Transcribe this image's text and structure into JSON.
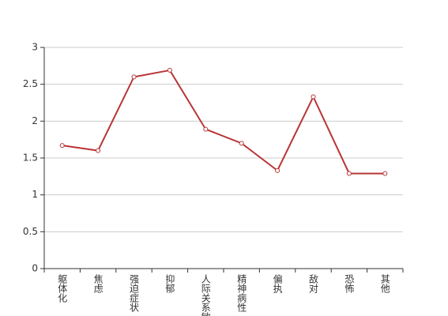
{
  "chart_data": {
    "type": "line",
    "categories": [
      "躯体化",
      "焦虑",
      "强迫症状",
      "抑郁",
      "人际关系敏感",
      "精神病性",
      "偏执",
      "敌对",
      "恐怖",
      "其他"
    ],
    "series": [
      {
        "color": "#b83535",
        "values": [
          1.67,
          1.6,
          2.6,
          2.69,
          1.89,
          1.7,
          1.33,
          2.33,
          1.29,
          1.29
        ]
      }
    ],
    "ylim": [
      0,
      3
    ],
    "yticks": [
      0,
      0.5,
      1,
      1.5,
      2,
      2.5,
      3
    ],
    "grid": true
  }
}
